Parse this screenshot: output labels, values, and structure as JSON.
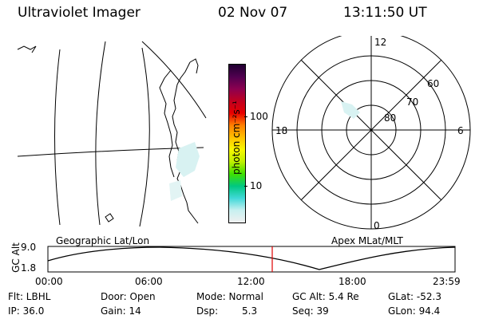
{
  "header": {
    "instrument": "Ultraviolet Imager",
    "date": "02 Nov 07",
    "time": "13:11:50 UT"
  },
  "colorbar": {
    "unit": "photon cm⁻²s⁻¹",
    "ticks": [
      "100",
      "10"
    ],
    "colors": [
      "#f0f0f0",
      "#c8f0f0",
      "#40d8d8",
      "#00c880",
      "#40e000",
      "#c0f000",
      "#f8f800",
      "#ffc000",
      "#ff8000",
      "#e80000",
      "#c00020",
      "#8c0050",
      "#500050",
      "#200030"
    ]
  },
  "map_labels": {
    "left": "Geographic Lat/Lon",
    "right": "Apex MLat/MLT"
  },
  "polar": {
    "mlt": {
      "top": "12",
      "left": "18",
      "right": "6",
      "bottom": "0"
    },
    "lat": [
      "60",
      "70",
      "80"
    ]
  },
  "altitude_plot": {
    "ylabel": "GC Alt",
    "yticks": [
      "9.0",
      "1.8"
    ],
    "xticks": [
      "00:00",
      "06:00",
      "12:00",
      "18:00",
      "23:59"
    ],
    "current_time_marker": "13:11"
  },
  "info": {
    "flt": "Flt: LBHL",
    "ip": "IP: 36.0",
    "door": "Door: Open",
    "gain": "Gain: 14",
    "mode": "Mode: Normal",
    "dsp_label": "Dsp:",
    "dsp_value": "5.3",
    "gcalt": "GC Alt: 5.4 Re",
    "seq": "Seq: 39",
    "glat": "GLat: -52.3",
    "glon": "GLon: 94.4"
  }
}
